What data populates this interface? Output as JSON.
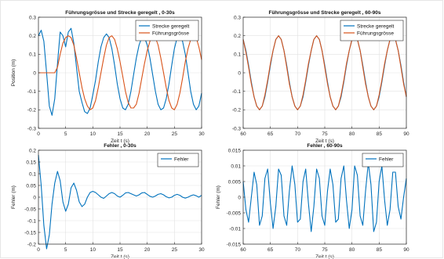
{
  "chart_data": [
    {
      "type": "line",
      "title": "Führungsgrösse und Strecke geregelt , 0-30s",
      "xlabel": "Zeit t (s)",
      "ylabel": "Position (m)",
      "xlim": [
        0,
        30
      ],
      "ylim": [
        -0.3,
        0.3
      ],
      "xticks": [
        0,
        5,
        10,
        15,
        20,
        25,
        30
      ],
      "yticks": [
        -0.3,
        -0.2,
        -0.1,
        0,
        0.1,
        0.2,
        0.3
      ],
      "ytick_labels": [
        "-0.3",
        "-0.2",
        "-0.1",
        "0",
        "0.1",
        "0.2",
        "0.3"
      ],
      "grid": true,
      "legend_position": "top-right",
      "series": [
        {
          "name": "Strecke geregelt",
          "color": "#0072bd",
          "x": [
            0,
            0.5,
            1,
            1.5,
            2,
            2.5,
            3,
            3.5,
            4,
            4.5,
            5,
            5.5,
            6,
            6.5,
            7,
            7.5,
            8,
            8.5,
            9,
            9.5,
            10,
            10.5,
            11,
            11.5,
            12,
            12.5,
            13,
            13.5,
            14,
            14.5,
            15,
            15.5,
            16,
            16.5,
            17,
            17.5,
            18,
            18.5,
            19,
            19.5,
            20,
            20.5,
            21,
            21.5,
            22,
            22.5,
            23,
            23.5,
            24,
            24.5,
            25,
            25.5,
            26,
            26.5,
            27,
            27.5,
            28,
            28.5,
            29,
            29.5,
            30
          ],
          "y": [
            0.2,
            0.23,
            0.17,
            0.0,
            -0.18,
            -0.23,
            -0.14,
            0.05,
            0.22,
            0.2,
            0.14,
            0.22,
            0.24,
            0.16,
            0.03,
            -0.1,
            -0.16,
            -0.21,
            -0.22,
            -0.19,
            -0.12,
            -0.04,
            0.06,
            0.14,
            0.19,
            0.21,
            0.19,
            0.13,
            0.04,
            -0.06,
            -0.14,
            -0.19,
            -0.2,
            -0.17,
            -0.1,
            -0.01,
            0.08,
            0.15,
            0.19,
            0.19,
            0.15,
            0.08,
            -0.01,
            -0.1,
            -0.17,
            -0.2,
            -0.19,
            -0.14,
            -0.06,
            0.04,
            0.13,
            0.19,
            0.2,
            0.17,
            0.1,
            0.0,
            -0.1,
            -0.17,
            -0.2,
            -0.18,
            -0.11
          ]
        },
        {
          "name": "Führungsgrösse",
          "color": "#d95319",
          "x": [
            0,
            0.5,
            1,
            1.5,
            2,
            2.5,
            3,
            3.5,
            4,
            4.5,
            5,
            5.5,
            6,
            6.5,
            7,
            7.5,
            8,
            8.5,
            9,
            9.5,
            10,
            10.5,
            11,
            11.5,
            12,
            12.5,
            13,
            13.5,
            14,
            14.5,
            15,
            15.5,
            16,
            16.5,
            17,
            17.5,
            18,
            18.5,
            19,
            19.5,
            20,
            20.5,
            21,
            21.5,
            22,
            22.5,
            23,
            23.5,
            24,
            24.5,
            25,
            25.5,
            26,
            26.5,
            27,
            27.5,
            28,
            28.5,
            29,
            29.5,
            30
          ],
          "y": [
            0,
            0,
            0,
            0,
            0,
            0,
            0,
            0.03,
            0.1,
            0.16,
            0.19,
            0.2,
            0.19,
            0.15,
            0.08,
            0.0,
            -0.08,
            -0.14,
            -0.18,
            -0.2,
            -0.19,
            -0.15,
            -0.08,
            0.0,
            0.08,
            0.15,
            0.19,
            0.2,
            0.18,
            0.13,
            0.06,
            -0.02,
            -0.1,
            -0.16,
            -0.19,
            -0.19,
            -0.17,
            -0.11,
            -0.03,
            0.05,
            0.12,
            0.17,
            0.2,
            0.19,
            0.15,
            0.08,
            0.0,
            -0.08,
            -0.15,
            -0.19,
            -0.2,
            -0.17,
            -0.11,
            -0.03,
            0.06,
            0.13,
            0.18,
            0.2,
            0.19,
            0.14,
            0.07
          ]
        }
      ]
    },
    {
      "type": "line",
      "title": "Führungsgrösse und Strecke geregelt , 60-90s",
      "xlabel": "Zeit t (s)",
      "ylabel": "",
      "xlim": [
        60,
        90
      ],
      "ylim": [
        -0.3,
        0.3
      ],
      "xticks": [
        60,
        65,
        70,
        75,
        80,
        85,
        90
      ],
      "yticks": [
        -0.3,
        -0.2,
        -0.1,
        0,
        0.1,
        0.2,
        0.3
      ],
      "ytick_labels": [
        "-0.3",
        "-0.2",
        "-0.1",
        "0",
        "0.1",
        "0.2",
        "0.3"
      ],
      "grid": true,
      "legend_position": "top-right",
      "series": [
        {
          "name": "Strecke geregelt",
          "color": "#0072bd",
          "x": [
            60,
            60.5,
            61,
            61.5,
            62,
            62.5,
            63,
            63.5,
            64,
            64.5,
            65,
            65.5,
            66,
            66.5,
            67,
            67.5,
            68,
            68.5,
            69,
            69.5,
            70,
            70.5,
            71,
            71.5,
            72,
            72.5,
            73,
            73.5,
            74,
            74.5,
            75,
            75.5,
            76,
            76.5,
            77,
            77.5,
            78,
            78.5,
            79,
            79.5,
            80,
            80.5,
            81,
            81.5,
            82,
            82.5,
            83,
            83.5,
            84,
            84.5,
            85,
            85.5,
            86,
            86.5,
            87,
            87.5,
            88,
            88.5,
            89,
            89.5,
            90
          ],
          "y": [
            0.18,
            0.12,
            0.04,
            -0.05,
            -0.13,
            -0.18,
            -0.2,
            -0.18,
            -0.13,
            -0.05,
            0.04,
            0.12,
            0.18,
            0.2,
            0.18,
            0.12,
            0.04,
            -0.05,
            -0.13,
            -0.18,
            -0.2,
            -0.18,
            -0.13,
            -0.05,
            0.04,
            0.12,
            0.18,
            0.2,
            0.18,
            0.12,
            0.04,
            -0.05,
            -0.13,
            -0.18,
            -0.2,
            -0.18,
            -0.13,
            -0.05,
            0.04,
            0.12,
            0.18,
            0.2,
            0.18,
            0.12,
            0.04,
            -0.05,
            -0.13,
            -0.18,
            -0.2,
            -0.18,
            -0.13,
            -0.05,
            0.04,
            0.12,
            0.18,
            0.2,
            0.18,
            0.12,
            0.04,
            -0.05,
            -0.13
          ]
        },
        {
          "name": "Führungsgrösse",
          "color": "#d95319",
          "x": [
            60,
            60.5,
            61,
            61.5,
            62,
            62.5,
            63,
            63.5,
            64,
            64.5,
            65,
            65.5,
            66,
            66.5,
            67,
            67.5,
            68,
            68.5,
            69,
            69.5,
            70,
            70.5,
            71,
            71.5,
            72,
            72.5,
            73,
            73.5,
            74,
            74.5,
            75,
            75.5,
            76,
            76.5,
            77,
            77.5,
            78,
            78.5,
            79,
            79.5,
            80,
            80.5,
            81,
            81.5,
            82,
            82.5,
            83,
            83.5,
            84,
            84.5,
            85,
            85.5,
            86,
            86.5,
            87,
            87.5,
            88,
            88.5,
            89,
            89.5,
            90
          ],
          "y": [
            0.18,
            0.11,
            0.03,
            -0.06,
            -0.13,
            -0.18,
            -0.2,
            -0.18,
            -0.12,
            -0.04,
            0.05,
            0.12,
            0.18,
            0.2,
            0.18,
            0.12,
            0.03,
            -0.06,
            -0.13,
            -0.18,
            -0.2,
            -0.18,
            -0.12,
            -0.04,
            0.05,
            0.12,
            0.18,
            0.2,
            0.18,
            0.12,
            0.03,
            -0.06,
            -0.13,
            -0.18,
            -0.2,
            -0.18,
            -0.12,
            -0.04,
            0.05,
            0.12,
            0.18,
            0.2,
            0.18,
            0.12,
            0.03,
            -0.06,
            -0.13,
            -0.18,
            -0.2,
            -0.18,
            -0.12,
            -0.04,
            0.05,
            0.12,
            0.18,
            0.2,
            0.18,
            0.12,
            0.03,
            -0.06,
            -0.13
          ]
        }
      ]
    },
    {
      "type": "line",
      "title": "Fehler , 0-30s",
      "xlabel": "Zeit t (s)",
      "ylabel": "Fehler (m)",
      "xlim": [
        0,
        30
      ],
      "ylim": [
        -0.2,
        0.2
      ],
      "xticks": [
        0,
        5,
        10,
        15,
        20,
        25,
        30
      ],
      "yticks": [
        -0.2,
        -0.15,
        -0.1,
        -0.05,
        0,
        0.05,
        0.1,
        0.15,
        0.2
      ],
      "ytick_labels": [
        "-0.2",
        "-0.15",
        "-0.1",
        "-0.05",
        "0",
        "0.05",
        "0.1",
        "0.15",
        "0.2"
      ],
      "grid": true,
      "legend_position": "top-right",
      "series": [
        {
          "name": "Fehler",
          "color": "#0072bd",
          "x": [
            0,
            0.5,
            1,
            1.5,
            2,
            2.5,
            3,
            3.5,
            4,
            4.5,
            5,
            5.5,
            6,
            6.5,
            7,
            7.5,
            8,
            8.5,
            9,
            9.5,
            10,
            10.5,
            11,
            11.5,
            12,
            12.5,
            13,
            13.5,
            14,
            14.5,
            15,
            15.5,
            16,
            16.5,
            17,
            17.5,
            18,
            18.5,
            19,
            19.5,
            20,
            20.5,
            21,
            21.5,
            22,
            22.5,
            23,
            23.5,
            24,
            24.5,
            25,
            25.5,
            26,
            26.5,
            27,
            27.5,
            28,
            28.5,
            29,
            29.5,
            30
          ],
          "y": [
            0.18,
            0.05,
            -0.12,
            -0.22,
            -0.16,
            -0.03,
            0.06,
            0.11,
            0.07,
            -0.02,
            -0.06,
            -0.03,
            0.04,
            0.06,
            0.03,
            -0.02,
            -0.04,
            -0.03,
            0.0,
            0.02,
            0.025,
            0.02,
            0.01,
            0.0,
            -0.005,
            0.005,
            0.015,
            0.02,
            0.015,
            0.005,
            0.0,
            0.008,
            0.018,
            0.02,
            0.015,
            0.01,
            0.005,
            0.01,
            0.018,
            0.02,
            0.012,
            0.004,
            0.0,
            0.005,
            0.012,
            0.015,
            0.01,
            0.002,
            -0.003,
            0.0,
            0.008,
            0.012,
            0.008,
            0.0,
            -0.004,
            0.0,
            0.006,
            0.01,
            0.006,
            0.0,
            0.008
          ]
        }
      ]
    },
    {
      "type": "line",
      "title": "Fehler , 60-90s",
      "xlabel": "Zeit t (s)",
      "ylabel": "Fehler (m)",
      "xlim": [
        60,
        90
      ],
      "ylim": [
        -0.015,
        0.015
      ],
      "xticks": [
        60,
        65,
        70,
        75,
        80,
        85,
        90
      ],
      "yticks": [
        -0.015,
        -0.01,
        -0.005,
        0,
        0.005,
        0.01,
        0.015
      ],
      "ytick_labels": [
        "-0.015",
        "-0.01",
        "-0.005",
        "0",
        "0.005",
        "0.01",
        "0.015"
      ],
      "grid": true,
      "legend_position": "top-right",
      "series": [
        {
          "name": "Fehler",
          "color": "#0072bd",
          "x": [
            60,
            60.5,
            61,
            61.5,
            62,
            62.5,
            63,
            63.5,
            64,
            64.5,
            65,
            65.5,
            66,
            66.5,
            67,
            67.5,
            68,
            68.5,
            69,
            69.5,
            70,
            70.5,
            71,
            71.5,
            72,
            72.5,
            73,
            73.5,
            74,
            74.5,
            75,
            75.5,
            76,
            76.5,
            77,
            77.5,
            78,
            78.5,
            79,
            79.5,
            80,
            80.5,
            81,
            81.5,
            82,
            82.5,
            83,
            83.5,
            84,
            84.5,
            85,
            85.5,
            86,
            86.5,
            87,
            87.5,
            88,
            88.5,
            89,
            89.5,
            90
          ],
          "y": [
            0.005,
            -0.004,
            -0.008,
            0.0,
            0.008,
            0.004,
            -0.009,
            -0.006,
            0.006,
            0.009,
            -0.002,
            -0.01,
            -0.003,
            0.009,
            0.007,
            -0.006,
            -0.009,
            0.002,
            0.01,
            0.004,
            -0.008,
            -0.007,
            0.005,
            0.009,
            -0.002,
            -0.011,
            -0.003,
            0.009,
            0.006,
            -0.006,
            -0.009,
            0.002,
            0.009,
            0.004,
            -0.008,
            -0.007,
            0.006,
            0.01,
            -0.001,
            -0.01,
            -0.004,
            0.01,
            0.007,
            -0.006,
            -0.009,
            0.002,
            0.011,
            0.004,
            -0.011,
            -0.008,
            0.005,
            0.01,
            -0.001,
            -0.009,
            -0.004,
            0.008,
            0.008,
            -0.003,
            -0.007,
            0.0,
            0.006
          ]
        }
      ]
    }
  ]
}
